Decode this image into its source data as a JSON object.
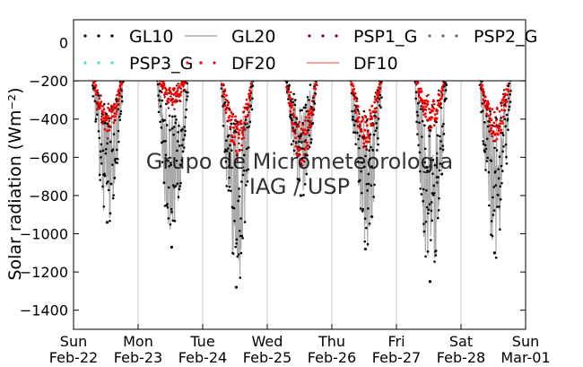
{
  "chart_data": {
    "type": "scatter",
    "title": "",
    "xlabel": "",
    "ylabel": "Solar radiation (Wm⁻²)",
    "ylim": [
      -1500,
      120
    ],
    "yticks": [
      -1400,
      -1200,
      -1000,
      -800,
      -600,
      -400,
      -200,
      0
    ],
    "xlim": [
      0,
      7
    ],
    "xticks": [
      {
        "pos": 0,
        "day": "Sun",
        "date": "Feb-22"
      },
      {
        "pos": 1,
        "day": "Mon",
        "date": "Feb-23"
      },
      {
        "pos": 2,
        "day": "Tue",
        "date": "Feb-24"
      },
      {
        "pos": 3,
        "day": "Wed",
        "date": "Feb-25"
      },
      {
        "pos": 4,
        "day": "Thu",
        "date": "Feb-26"
      },
      {
        "pos": 5,
        "day": "Fri",
        "date": "Feb-27"
      },
      {
        "pos": 6,
        "day": "Sat",
        "date": "Feb-28"
      },
      {
        "pos": 7,
        "day": "Sun",
        "date": "Mar-01"
      }
    ],
    "grid": "vertical",
    "legend_placement": "top",
    "watermark": [
      "Grupo de Micrometeorologia",
      "IAG / USP"
    ],
    "series": [
      {
        "name": "GL10",
        "color": "#000000",
        "style": "dots"
      },
      {
        "name": "GL20",
        "color": "#aaaaaa",
        "style": "line"
      },
      {
        "name": "PSP1_G",
        "color": "#8b0000",
        "style": "dots"
      },
      {
        "name": "PSP2_G",
        "color": "#666666",
        "style": "dots"
      },
      {
        "name": "PSP3_G",
        "color": "#40e0d0",
        "style": "dots"
      },
      {
        "name": "DF20",
        "color": "#ff0000",
        "style": "dots"
      },
      {
        "name": "DF10",
        "color": "#ff8080",
        "style": "line"
      }
    ],
    "daily_min_global": [
      {
        "day": 0,
        "min": -940
      },
      {
        "day": 1,
        "min": -1070
      },
      {
        "day": 2,
        "min": -1280
      },
      {
        "day": 3,
        "min": -800
      },
      {
        "day": 4,
        "min": -1080
      },
      {
        "day": 5,
        "min": -1250
      },
      {
        "day": 6,
        "min": -1100
      }
    ],
    "daily_min_diffuse": [
      {
        "day": 0,
        "min": -480
      },
      {
        "day": 1,
        "min": -330
      },
      {
        "day": 2,
        "min": -600
      },
      {
        "day": 3,
        "min": -640
      },
      {
        "day": 4,
        "min": -560
      },
      {
        "day": 5,
        "min": -460
      },
      {
        "day": 6,
        "min": -520
      }
    ]
  }
}
